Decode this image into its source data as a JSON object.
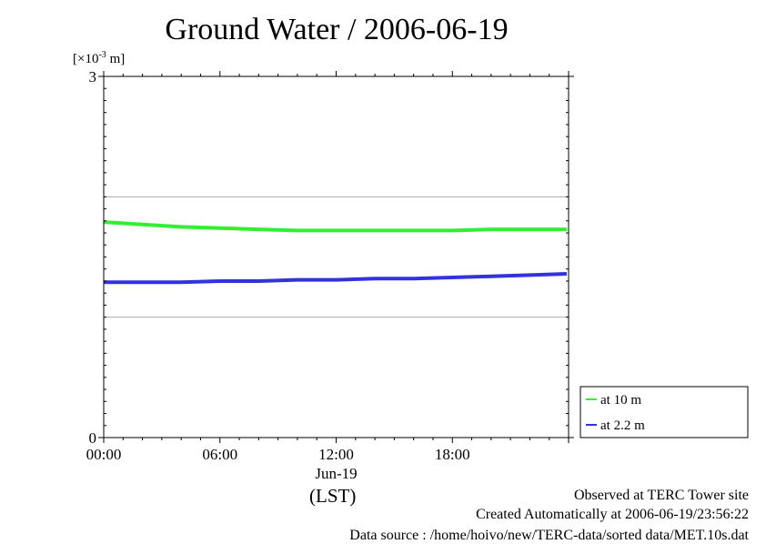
{
  "chart_data": {
    "type": "line",
    "title": "Ground Water / 2006-06-19",
    "unit_prefix": "[×10",
    "unit_exp": "-3",
    "unit_suffix": " m]",
    "xlabel": "(LST)",
    "x_ticks": [
      "00:00",
      "06:00",
      "12:00",
      "18:00"
    ],
    "x_date_label": "Jun-19",
    "x_tick_hours": [
      0,
      6,
      12,
      18
    ],
    "x_range_hours": [
      0,
      24
    ],
    "y_ticks": [
      "3",
      "0"
    ],
    "ylim": [
      0,
      3
    ],
    "grid_y": [
      1,
      2
    ],
    "legend_position": "bottom-right outside",
    "series": [
      {
        "name": "at 10 m",
        "color": "#33ee33",
        "x": [
          0,
          2,
          4,
          6,
          8,
          10,
          12,
          14,
          16,
          18,
          20,
          22,
          23.9
        ],
        "values": [
          1.79,
          1.77,
          1.75,
          1.74,
          1.73,
          1.72,
          1.72,
          1.72,
          1.72,
          1.72,
          1.73,
          1.73,
          1.73
        ]
      },
      {
        "name": "at 2.2 m",
        "color": "#3333dd",
        "x": [
          0,
          2,
          4,
          6,
          8,
          10,
          12,
          14,
          16,
          18,
          20,
          22,
          23.9
        ],
        "values": [
          1.29,
          1.29,
          1.29,
          1.3,
          1.3,
          1.31,
          1.31,
          1.32,
          1.32,
          1.33,
          1.34,
          1.35,
          1.36
        ]
      }
    ]
  },
  "footer": {
    "line1": "Observed at TERC Tower site",
    "line2": "Created Automatically at 2006-06-19/23:56:22",
    "line3": "Data source : /home/hoivo/new/TERC-data/sorted  data/MET.10s.dat"
  }
}
